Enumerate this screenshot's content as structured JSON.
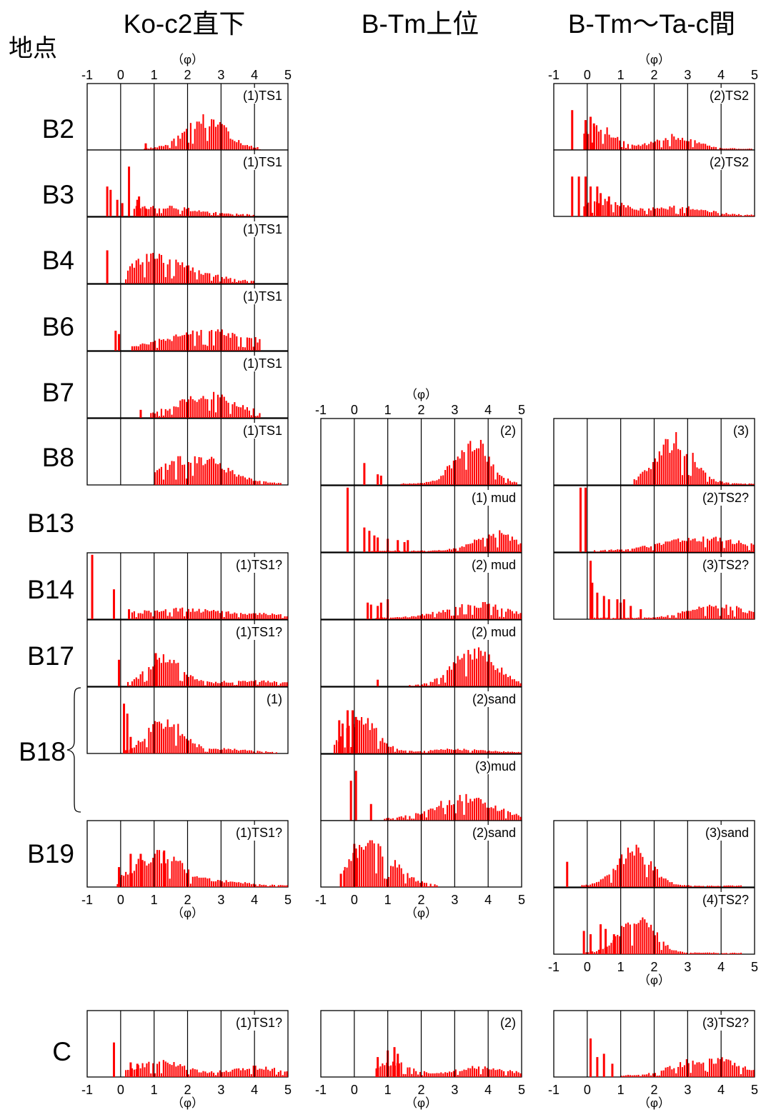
{
  "corner_label": "地点",
  "column_headers": [
    "Ko-c2直下",
    "B-Tm上位",
    "B-Tm～Ta-c間"
  ],
  "axis_unit": "（φ）",
  "x_ticks": [
    "-1",
    "0",
    "1",
    "2",
    "3",
    "4",
    "5"
  ],
  "row_labels": [
    "B2",
    "B3",
    "B4",
    "B6",
    "B7",
    "B8",
    "B13",
    "B14",
    "B17",
    "B18",
    "B19",
    "C"
  ],
  "colors": {
    "bars": "#ff0000",
    "frame": "#000000",
    "background": "#ffffff"
  },
  "chart_data": [
    {
      "type": "bar",
      "column": "Ko-c2直下",
      "row": "B2",
      "label": "(1)TS1",
      "xlim": [
        -1,
        5
      ],
      "x_ticks": [
        -1,
        0,
        1,
        2,
        3,
        4,
        5
      ],
      "profile": {
        "peaks": [
          {
            "x": 2.55,
            "height": 0.42,
            "width": 0.6
          }
        ],
        "x_start": 0.7,
        "x_end": 4.2
      },
      "spikes": [
        [
          0.75,
          0.1
        ]
      ]
    },
    {
      "type": "bar",
      "column": "Ko-c2直下",
      "row": "B3",
      "label": "(1)TS1",
      "xlim": [
        -1,
        5
      ],
      "x_ticks": [
        -1,
        0,
        1,
        2,
        3,
        4,
        5
      ],
      "profile": {
        "peaks": [
          {
            "x": 1.0,
            "height": 0.12,
            "width": 1.2
          }
        ],
        "x_start": 0.4,
        "x_end": 4.0
      },
      "spikes": [
        [
          -0.4,
          0.45
        ],
        [
          -0.3,
          0.4
        ],
        [
          -0.1,
          0.25
        ],
        [
          0.05,
          0.2
        ],
        [
          0.25,
          0.75
        ],
        [
          0.5,
          0.25
        ],
        [
          0.55,
          0.3
        ],
        [
          0.75,
          0.12
        ]
      ]
    },
    {
      "type": "bar",
      "column": "Ko-c2直下",
      "row": "B4",
      "label": "(1)TS1",
      "xlim": [
        -1,
        5
      ],
      "x_ticks": [
        -1,
        0,
        1,
        2,
        3,
        4,
        5
      ],
      "profile": {
        "peaks": [
          {
            "x": 1.0,
            "height": 0.35,
            "width": 0.8
          },
          {
            "x": 2.5,
            "height": 0.08,
            "width": 0.8
          }
        ],
        "x_start": 0.15,
        "x_end": 4.0
      },
      "spikes": [
        [
          -0.4,
          0.5
        ]
      ]
    },
    {
      "type": "bar",
      "column": "Ko-c2直下",
      "row": "B6",
      "label": "(1)TS1",
      "xlim": [
        -1,
        5
      ],
      "x_ticks": [
        -1,
        0,
        1,
        2,
        3,
        4,
        5
      ],
      "profile": {
        "peaks": [
          {
            "x": 2.7,
            "height": 0.25,
            "width": 1.3
          }
        ],
        "x_start": 0.3,
        "x_end": 4.2
      },
      "spikes": [
        [
          -0.15,
          0.3
        ],
        [
          -0.05,
          0.25
        ]
      ]
    },
    {
      "type": "bar",
      "column": "Ko-c2直下",
      "row": "B7",
      "label": "(1)TS1",
      "xlim": [
        -1,
        5
      ],
      "x_ticks": [
        -1,
        0,
        1,
        2,
        3,
        4,
        5
      ],
      "profile": {
        "peaks": [
          {
            "x": 2.6,
            "height": 0.3,
            "width": 0.9
          }
        ],
        "x_start": 0.9,
        "x_end": 4.2
      },
      "spikes": [
        [
          0.6,
          0.12
        ]
      ]
    },
    {
      "type": "bar",
      "column": "Ko-c2直下",
      "row": "B8",
      "label": "(1)TS1",
      "xlim": [
        -1,
        5
      ],
      "x_ticks": [
        -1,
        0,
        1,
        2,
        3,
        4,
        5
      ],
      "profile": {
        "peaks": [
          {
            "x": 2.2,
            "height": 0.38,
            "width": 0.9
          }
        ],
        "x_start": 1.0,
        "x_end": 4.8
      },
      "spikes": []
    },
    {
      "type": "bar",
      "column": "Ko-c2直下",
      "row": "B14",
      "label": "(1)TS1?",
      "xlim": [
        -1,
        5
      ],
      "x_ticks": [
        -1,
        0,
        1,
        2,
        3,
        4,
        5
      ],
      "profile": {
        "peaks": [
          {
            "x": 1.8,
            "height": 0.12,
            "width": 1.5
          },
          {
            "x": 4.5,
            "height": 0.03,
            "width": 0.6
          }
        ],
        "x_start": 0.3,
        "x_end": 5.0
      },
      "spikes": [
        [
          -0.85,
          0.97
        ],
        [
          -0.2,
          0.45
        ],
        [
          0.25,
          0.15
        ]
      ]
    },
    {
      "type": "bar",
      "column": "Ko-c2直下",
      "row": "B17",
      "label": "(1)TS1?",
      "xlim": [
        -1,
        5
      ],
      "x_ticks": [
        -1,
        0,
        1,
        2,
        3,
        4,
        5
      ],
      "profile": {
        "peaks": [
          {
            "x": 1.3,
            "height": 0.4,
            "width": 0.5
          },
          {
            "x": 3.8,
            "height": 0.06,
            "width": 1.0
          }
        ],
        "x_start": 0.2,
        "x_end": 5.0
      },
      "spikes": [
        [
          -0.05,
          0.4
        ],
        [
          1.05,
          0.5
        ]
      ]
    },
    {
      "type": "bar",
      "column": "Ko-c2直下",
      "row": "B18",
      "label": "(1)",
      "xlim": [
        -1,
        5
      ],
      "x_ticks": [
        -1,
        0,
        1,
        2,
        3,
        4,
        5
      ],
      "profile": {
        "peaks": [
          {
            "x": 1.3,
            "height": 0.45,
            "width": 0.5
          },
          {
            "x": 2.8,
            "height": 0.05,
            "width": 0.8
          }
        ],
        "x_start": 0.05,
        "x_end": 4.7
      },
      "spikes": [
        [
          0.1,
          0.75
        ],
        [
          0.2,
          0.6
        ],
        [
          0.3,
          0.25
        ]
      ]
    },
    {
      "type": "bar",
      "column": "Ko-c2直下",
      "row": "B19",
      "label": "(1)TS1?",
      "xlim": [
        -1,
        5
      ],
      "x_ticks": [
        -1,
        0,
        1,
        2,
        3,
        4,
        5
      ],
      "profile": {
        "peaks": [
          {
            "x": 1.1,
            "height": 0.45,
            "width": 0.7
          },
          {
            "x": 3.0,
            "height": 0.06,
            "width": 0.8
          }
        ],
        "x_start": -0.1,
        "x_end": 5.0
      },
      "spikes": [
        [
          -0.05,
          0.3
        ],
        [
          0.3,
          0.5
        ],
        [
          0.6,
          0.5
        ],
        [
          1.3,
          0.55
        ]
      ]
    },
    {
      "type": "bar",
      "column": "Ko-c2直下",
      "row": "C",
      "label": "(1)TS1?",
      "xlim": [
        -1,
        5
      ],
      "x_ticks": [
        -1,
        0,
        1,
        2,
        3,
        4,
        5
      ],
      "profile": {
        "peaks": [
          {
            "x": 1.2,
            "height": 0.2,
            "width": 0.7
          },
          {
            "x": 4.0,
            "height": 0.12,
            "width": 0.8
          }
        ],
        "x_start": 0.1,
        "x_end": 5.0
      },
      "spikes": [
        [
          -0.2,
          0.52
        ],
        [
          0.3,
          0.22
        ],
        [
          0.5,
          0.2
        ]
      ]
    },
    {
      "type": "bar",
      "column": "B-Tm上位",
      "row": "B8",
      "label": "(2)",
      "xlim": [
        -1,
        5
      ],
      "x_ticks": [
        -1,
        0,
        1,
        2,
        3,
        4,
        5
      ],
      "profile": {
        "peaks": [
          {
            "x": 3.5,
            "height": 0.62,
            "width": 0.5
          }
        ],
        "x_start": 1.4,
        "x_end": 4.9
      },
      "spikes": [
        [
          0.3,
          0.33
        ],
        [
          0.7,
          0.16
        ],
        [
          0.8,
          0.14
        ]
      ]
    },
    {
      "type": "bar",
      "column": "B-Tm上位",
      "row": "B13",
      "label": "(1) mud",
      "xlim": [
        -1,
        5
      ],
      "x_ticks": [
        -1,
        0,
        1,
        2,
        3,
        4,
        5
      ],
      "profile": {
        "peaks": [
          {
            "x": 4.2,
            "height": 0.25,
            "width": 0.6
          }
        ],
        "x_start": 0.5,
        "x_end": 5.0
      },
      "spikes": [
        [
          -0.2,
          0.97
        ],
        [
          0.3,
          0.37
        ],
        [
          0.45,
          0.32
        ],
        [
          0.6,
          0.25
        ],
        [
          0.7,
          0.22
        ],
        [
          1.0,
          0.2
        ],
        [
          1.3,
          0.18
        ],
        [
          1.5,
          0.15
        ],
        [
          1.6,
          0.18
        ]
      ]
    },
    {
      "type": "bar",
      "column": "B-Tm上位",
      "row": "B14",
      "label": "(2) mud",
      "xlim": [
        -1,
        5
      ],
      "x_ticks": [
        -1,
        0,
        1,
        2,
        3,
        4,
        5
      ],
      "profile": {
        "peaks": [
          {
            "x": 3.6,
            "height": 0.2,
            "width": 0.9
          }
        ],
        "x_start": 0.6,
        "x_end": 5.0
      },
      "spikes": [
        [
          0.4,
          0.25
        ],
        [
          0.5,
          0.22
        ],
        [
          0.7,
          0.2
        ],
        [
          0.8,
          0.25
        ],
        [
          1.0,
          0.3
        ]
      ]
    },
    {
      "type": "bar",
      "column": "B-Tm上位",
      "row": "B17",
      "label": "(2) mud",
      "xlim": [
        -1,
        5
      ],
      "x_ticks": [
        -1,
        0,
        1,
        2,
        3,
        4,
        5
      ],
      "profile": {
        "peaks": [
          {
            "x": 3.6,
            "height": 0.52,
            "width": 0.6
          }
        ],
        "x_start": 1.6,
        "x_end": 5.0
      },
      "spikes": [
        [
          0.7,
          0.1
        ]
      ]
    },
    {
      "type": "bar",
      "column": "B-Tm上位",
      "row": "B18",
      "label": "(2)sand",
      "xlim": [
        -1,
        5
      ],
      "x_ticks": [
        -1,
        0,
        1,
        2,
        3,
        4,
        5
      ],
      "profile": {
        "peaks": [
          {
            "x": 0.2,
            "height": 0.45,
            "width": 0.5
          },
          {
            "x": 3.0,
            "height": 0.04,
            "width": 0.8
          }
        ],
        "x_start": -0.6,
        "x_end": 5.0
      },
      "spikes": [
        [
          -0.45,
          0.5
        ],
        [
          -0.35,
          0.45
        ],
        [
          -0.2,
          0.65
        ],
        [
          -0.05,
          0.65
        ],
        [
          0.05,
          0.55
        ]
      ]
    },
    {
      "type": "bar",
      "column": "B-Tm上位",
      "row": "B18",
      "label": "(3)mud",
      "xlim": [
        -1,
        5
      ],
      "x_ticks": [
        -1,
        0,
        1,
        2,
        3,
        4,
        5
      ],
      "profile": {
        "peaks": [
          {
            "x": 3.3,
            "height": 0.3,
            "width": 0.9
          }
        ],
        "x_start": 0.9,
        "x_end": 5.0
      },
      "spikes": [
        [
          -0.1,
          0.6
        ],
        [
          0.05,
          0.75
        ],
        [
          0.5,
          0.25
        ]
      ]
    },
    {
      "type": "bar",
      "column": "B-Tm上位",
      "row": "B19",
      "label": "(2)sand",
      "xlim": [
        -1,
        5
      ],
      "x_ticks": [
        -1,
        0,
        1,
        2,
        3,
        4,
        5
      ],
      "profile": {
        "peaks": [
          {
            "x": 0.5,
            "height": 0.55,
            "width": 0.7
          }
        ],
        "x_start": -0.3,
        "x_end": 2.5
      },
      "spikes": [
        [
          -0.4,
          0.2
        ],
        [
          -0.3,
          0.25
        ],
        [
          0.0,
          0.65
        ],
        [
          0.05,
          0.58
        ]
      ]
    },
    {
      "type": "bar",
      "column": "B-Tm上位",
      "row": "C",
      "label": "(2)",
      "xlim": [
        -1,
        5
      ],
      "x_ticks": [
        -1,
        0,
        1,
        2,
        3,
        4,
        5
      ],
      "profile": {
        "peaks": [
          {
            "x": 1.2,
            "height": 0.2,
            "width": 0.5
          },
          {
            "x": 3.8,
            "height": 0.12,
            "width": 0.8
          }
        ],
        "x_start": 0.6,
        "x_end": 5.0
      },
      "spikes": [
        [
          0.7,
          0.3
        ],
        [
          1.0,
          0.4
        ],
        [
          1.2,
          0.45
        ],
        [
          1.3,
          0.35
        ]
      ]
    },
    {
      "type": "bar",
      "column": "B-Tm～Ta-c間",
      "row": "B2",
      "label": "(2)TS2",
      "xlim": [
        -1,
        5
      ],
      "x_ticks": [
        -1,
        0,
        1,
        2,
        3,
        4,
        5
      ],
      "profile": {
        "peaks": [
          {
            "x": 0.3,
            "height": 0.3,
            "width": 0.5
          },
          {
            "x": 2.6,
            "height": 0.18,
            "width": 0.6
          }
        ],
        "x_start": -0.1,
        "x_end": 5.0
      },
      "spikes": [
        [
          -0.45,
          0.6
        ],
        [
          -0.05,
          0.45
        ],
        [
          0.1,
          0.5
        ],
        [
          0.2,
          0.4
        ]
      ]
    },
    {
      "type": "bar",
      "column": "B-Tm～Ta-c間",
      "row": "B3",
      "label": "(2)TS2",
      "xlim": [
        -1,
        5
      ],
      "x_ticks": [
        -1,
        0,
        1,
        2,
        3,
        4,
        5
      ],
      "profile": {
        "peaks": [
          {
            "x": 0.5,
            "height": 0.2,
            "width": 0.6
          },
          {
            "x": 2.7,
            "height": 0.12,
            "width": 0.8
          }
        ],
        "x_start": -0.1,
        "x_end": 5.0
      },
      "spikes": [
        [
          -0.45,
          0.6
        ],
        [
          -0.25,
          0.6
        ],
        [
          -0.05,
          0.6
        ],
        [
          0.1,
          0.45
        ],
        [
          0.3,
          0.45
        ],
        [
          0.4,
          0.35
        ],
        [
          0.65,
          0.3
        ]
      ]
    },
    {
      "type": "bar",
      "column": "B-Tm～Ta-c間",
      "row": "B8",
      "label": "(3)",
      "xlim": [
        -1,
        5
      ],
      "x_ticks": [
        -1,
        0,
        1,
        2,
        3,
        4,
        5
      ],
      "profile": {
        "peaks": [
          {
            "x": 2.6,
            "height": 0.62,
            "width": 0.55
          }
        ],
        "x_start": 1.4,
        "x_end": 5.0
      },
      "spikes": []
    },
    {
      "type": "bar",
      "column": "B-Tm～Ta-c間",
      "row": "B13",
      "label": "(2)TS2?",
      "xlim": [
        -1,
        5
      ],
      "x_ticks": [
        -1,
        0,
        1,
        2,
        3,
        4,
        5
      ],
      "profile": {
        "peaks": [
          {
            "x": 3.5,
            "height": 0.18,
            "width": 1.2
          }
        ],
        "x_start": 0.2,
        "x_end": 5.0
      },
      "spikes": [
        [
          -0.2,
          0.97
        ],
        [
          -0.05,
          0.97
        ]
      ]
    },
    {
      "type": "bar",
      "column": "B-Tm～Ta-c間",
      "row": "B14",
      "label": "(3)TS2?",
      "xlim": [
        -1,
        5
      ],
      "x_ticks": [
        -1,
        0,
        1,
        2,
        3,
        4,
        5
      ],
      "profile": {
        "peaks": [
          {
            "x": 3.9,
            "height": 0.18,
            "width": 0.8
          }
        ],
        "x_start": 0.2,
        "x_end": 5.0
      },
      "spikes": [
        [
          0.1,
          0.88
        ],
        [
          0.15,
          0.55
        ],
        [
          0.3,
          0.4
        ],
        [
          0.5,
          0.35
        ],
        [
          0.65,
          0.3
        ],
        [
          0.9,
          0.3
        ],
        [
          1.0,
          0.25
        ],
        [
          1.1,
          0.3
        ],
        [
          1.3,
          0.2
        ],
        [
          1.6,
          0.15
        ]
      ]
    },
    {
      "type": "bar",
      "column": "B-Tm～Ta-c間",
      "row": "B19",
      "label": "(3)sand",
      "xlim": [
        -1,
        5
      ],
      "x_ticks": [
        -1,
        0,
        1,
        2,
        3,
        4,
        5
      ],
      "profile": {
        "peaks": [
          {
            "x": 1.4,
            "height": 0.52,
            "width": 0.5
          }
        ],
        "x_start": -0.2,
        "x_end": 4.6
      },
      "spikes": [
        [
          -0.6,
          0.38
        ]
      ]
    },
    {
      "type": "bar",
      "column": "B-Tm～Ta-c間",
      "row": "B19",
      "label": "(4)TS2?",
      "xlim": [
        -1,
        5
      ],
      "x_ticks": [
        -1,
        0,
        1,
        2,
        3,
        4,
        5
      ],
      "profile": {
        "peaks": [
          {
            "x": 1.5,
            "height": 0.5,
            "width": 0.5
          }
        ],
        "x_start": -0.1,
        "x_end": 4.6
      },
      "spikes": [
        [
          -0.1,
          0.35
        ],
        [
          0.1,
          0.3
        ],
        [
          0.4,
          0.45
        ],
        [
          0.55,
          0.38
        ],
        [
          0.8,
          0.3
        ]
      ]
    },
    {
      "type": "bar",
      "column": "B-Tm～Ta-c間",
      "row": "C",
      "label": "(3)TS2?",
      "xlim": [
        -1,
        5
      ],
      "x_ticks": [
        -1,
        0,
        1,
        2,
        3,
        4,
        5
      ],
      "profile": {
        "peaks": [
          {
            "x": 3.6,
            "height": 0.25,
            "width": 0.9
          }
        ],
        "x_start": 1.0,
        "x_end": 5.0
      },
      "spikes": [
        [
          0.1,
          0.58
        ],
        [
          0.3,
          0.3
        ],
        [
          0.5,
          0.35
        ],
        [
          0.75,
          0.2
        ]
      ]
    }
  ]
}
